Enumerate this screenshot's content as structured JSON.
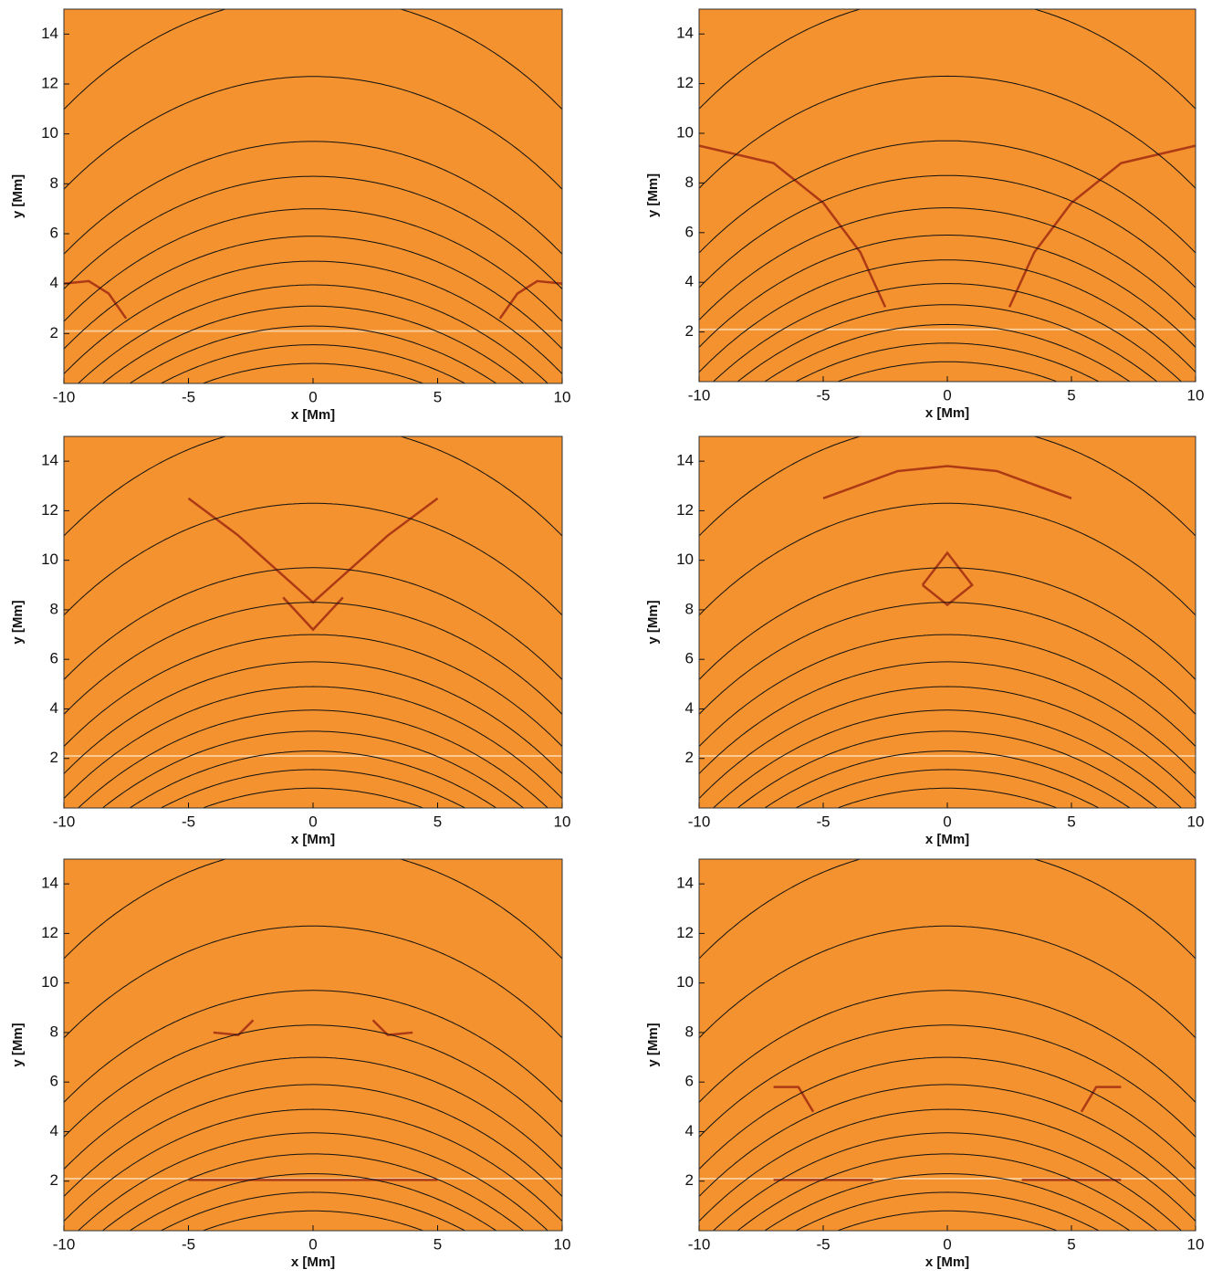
{
  "chart_data": [
    {
      "type": "field",
      "xlabel": "x [Mm]",
      "ylabel": "y [Mm]",
      "xlim": [
        -10,
        10
      ],
      "ylim": [
        0,
        15
      ],
      "xticks": [
        -10,
        -5,
        0,
        5,
        10
      ],
      "yticks": [
        2,
        4,
        6,
        8,
        10,
        12,
        14
      ],
      "color": "#f3922f"
    },
    {
      "type": "field",
      "xlabel": "x [Mm]",
      "ylabel": "y [Mm]",
      "xlim": [
        -10,
        10
      ],
      "ylim": [
        0,
        15
      ],
      "xticks": [
        -10,
        -5,
        0,
        5,
        10
      ],
      "yticks": [
        2,
        4,
        6,
        8,
        10,
        12,
        14
      ],
      "color": "#f3922f"
    },
    {
      "type": "field",
      "xlabel": "x [Mm]",
      "ylabel": "y [Mm]",
      "xlim": [
        -10,
        10
      ],
      "ylim": [
        0,
        15
      ],
      "xticks": [
        -10,
        -5,
        0,
        5,
        10
      ],
      "yticks": [
        2,
        4,
        6,
        8,
        10,
        12,
        14
      ],
      "color": "#f3922f"
    },
    {
      "type": "field",
      "xlabel": "x [Mm]",
      "ylabel": "y [Mm]",
      "xlim": [
        -10,
        10
      ],
      "ylim": [
        0,
        15
      ],
      "xticks": [
        -10,
        -5,
        0,
        5,
        10
      ],
      "yticks": [
        2,
        4,
        6,
        8,
        10,
        12,
        14
      ],
      "color": "#f3922f"
    },
    {
      "type": "field",
      "xlabel": "x [Mm]",
      "ylabel": "y [Mm]",
      "xlim": [
        -10,
        10
      ],
      "ylim": [
        0,
        15
      ],
      "xticks": [
        -10,
        -5,
        0,
        5,
        10
      ],
      "yticks": [
        2,
        4,
        6,
        8,
        10,
        12,
        14
      ],
      "color": "#f3922f"
    },
    {
      "type": "field",
      "xlabel": "x [Mm]",
      "ylabel": "y [Mm]",
      "xlim": [
        -10,
        10
      ],
      "ylim": [
        0,
        15
      ],
      "xticks": [
        -10,
        -5,
        0,
        5,
        10
      ],
      "yticks": [
        2,
        4,
        6,
        8,
        10,
        12,
        14
      ],
      "color": "#f3922f"
    }
  ]
}
